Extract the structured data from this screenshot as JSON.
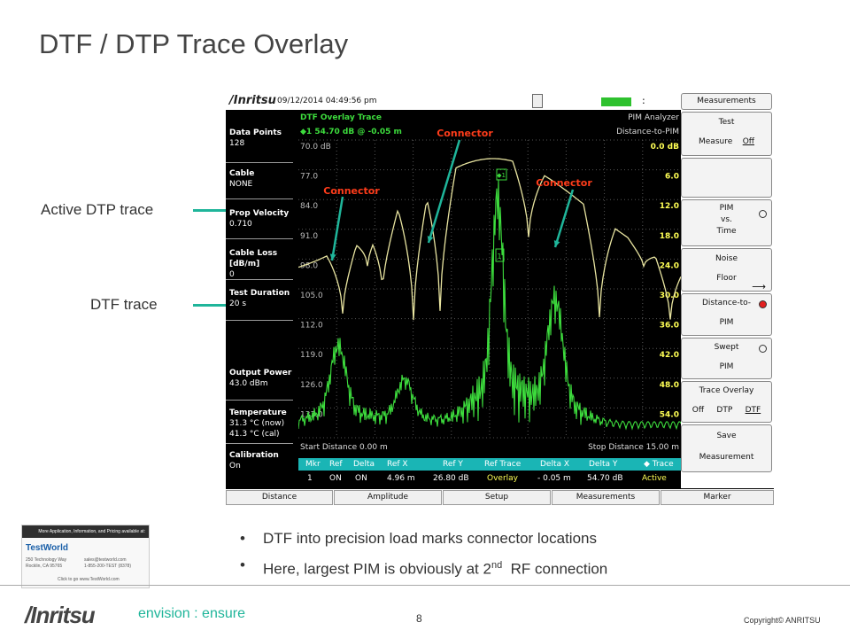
{
  "slide": {
    "title": "DTF / DTP Trace Overlay",
    "callouts": {
      "active": "Active DTP trace",
      "dtf": "DTF trace"
    },
    "bullets": [
      {
        "text": "DTF into precision load marks connector locations"
      },
      {
        "pre": "Here, largest PIM is obviously at 2",
        "sup": "nd",
        "post": "  RF connection"
      }
    ],
    "footer": {
      "logo": "/Inritsu",
      "tagline": "envision : ensure",
      "page": "8",
      "copyright": "Copyright© ANRITSU"
    },
    "ad": {
      "top": "More Application, Information, and Pricing available at:",
      "logo": "TestWorld",
      "addr1": "250 Technology Way",
      "addr2": "Rocklin, CA 95765",
      "email": "sales@testworld.com",
      "phone": "1-855-200-TEST (8378)",
      "click": "Click to go www.TestWorld.com"
    }
  },
  "instrument": {
    "brand": "/Inritsu",
    "datetime": "09/12/2014 04:49:56 pm",
    "status_dots": ":",
    "trace_title": "DTF Overlay Trace",
    "mode": "PIM Analyzer",
    "measurement": "Distance-to-PIM",
    "marker_readout": "◆1  54.70 dB @ -0.05 m",
    "left_panel": [
      {
        "label": "Data Points",
        "value": "128"
      },
      {
        "label": "Cable",
        "value": "NONE"
      },
      {
        "label": "Prop Velocity",
        "value": "0.710"
      },
      {
        "label": "Cable Loss [dB/m]",
        "value": "0"
      },
      {
        "label": "Test Duration",
        "value": "20 s"
      },
      {
        "label": "Output Power",
        "value": "43.0 dBm"
      },
      {
        "label": "Temperature",
        "value": "31.3 °C  (now)",
        "value2": "41.3 °C  (cal)"
      },
      {
        "label": "Calibration",
        "value": "On"
      }
    ],
    "y_left": [
      "70.0 dB",
      "77.0",
      "84.0",
      "91.0",
      "98.0",
      "105.0",
      "112.0",
      "119.0",
      "126.0",
      "133.0"
    ],
    "y_right": [
      "0.0 dB",
      "6.0",
      "12.0",
      "18.0",
      "24.0",
      "30.0",
      "36.0",
      "42.0",
      "48.0",
      "54.0"
    ],
    "start_distance": "Start Distance 0.00 m",
    "stop_distance": "Stop Distance 15.00 m",
    "connector_labels": [
      "Connector",
      "Connector",
      "Connector"
    ],
    "marker_tags": [
      "◆1",
      "1"
    ],
    "marker_table": {
      "headers": [
        "Mkr",
        "Ref",
        "Delta",
        "Ref X",
        "Ref Y",
        "Ref Trace",
        "Delta X",
        "Delta Y",
        "◆ Trace"
      ],
      "row": [
        "1",
        "ON",
        "ON",
        "4.96 m",
        "26.80 dB",
        "Overlay",
        "- 0.05 m",
        "54.70 dB",
        "Active"
      ]
    },
    "right_menu": [
      {
        "label": "Measurements"
      },
      {
        "label": "Test",
        "sub": "Measure",
        "sub2": "Off"
      },
      {
        "label": ""
      },
      {
        "label": "PIM",
        "sub": "vs.",
        "sub2": "Time"
      },
      {
        "label": "Noise",
        "sub": "Floor"
      },
      {
        "label": "Distance-to-",
        "sub": "PIM"
      },
      {
        "label": "Swept",
        "sub": "PIM"
      },
      {
        "label": "Trace Overlay",
        "opts": [
          "Off",
          "DTP",
          "DTF"
        ]
      },
      {
        "label": "Save",
        "sub": "Measurement"
      }
    ],
    "bottom_tabs": [
      "Distance",
      "Amplitude",
      "Setup",
      "Measurements",
      "Marker"
    ],
    "colors": {
      "dtp_trace": "#e8e4a0",
      "dtf_trace": "#3ddc3d",
      "connector_label": "#ff3c1a",
      "axis_right": "#ffff55",
      "marker_bar": "#1ab5b5",
      "accent_arrow": "#1fb59a"
    }
  }
}
